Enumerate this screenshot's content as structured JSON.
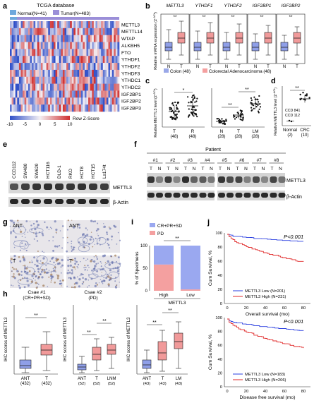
{
  "panel_letters": [
    "a",
    "b",
    "c",
    "d",
    "e",
    "f",
    "g",
    "h",
    "i",
    "j"
  ],
  "panel_a": {
    "title": "TCGA database",
    "legend_normal": "Normal(N=41)",
    "legend_tumor": "Tumor(N=483)",
    "genes": [
      "METTL3",
      "METTL14",
      "WTAP",
      "ALKBH5",
      "FTO",
      "YTHDF1",
      "YTHDF2",
      "YTHDF3",
      "YTHDC1",
      "YTHDC2",
      "IGF2BP1",
      "IGF2BP2",
      "IGF2BP3"
    ],
    "scale_ticks": [
      "-10",
      "-5",
      "0",
      "5",
      "10"
    ],
    "scale_label": "Row Z-Score",
    "colors": {
      "normal": "#6fa8dc",
      "tumor": "#9b8fd8",
      "low": "#3050c8",
      "high": "#d03030"
    }
  },
  "panel_b": {
    "genes": [
      "METTL3",
      "YTHDF1",
      "YTHDF2",
      "IGF2BP1",
      "IGF2BP2"
    ],
    "sig": [
      "**",
      "**",
      "**",
      "**",
      "**"
    ],
    "ylabel": "Relative mRNA expression (2",
    "ylabel_sup": "-ΔCt",
    "ylabel_end": ")",
    "xticks": [
      "N",
      "T"
    ],
    "legend": [
      {
        "label": "Colon (48)",
        "color": "#9aa8e8"
      },
      {
        "label": "Colorectal Adenocarcinoma (48)",
        "color": "#f4a0a0"
      }
    ]
  },
  "panel_c": {
    "ylabel": "Relative METTL3 level (2",
    "ylabel_sup": "-ΔCt",
    "ylabel_end": ")",
    "left": {
      "groups": [
        "T",
        "R"
      ],
      "counts": [
        "(48)",
        "(48)"
      ],
      "sig": "*"
    },
    "right": {
      "groups": [
        "N",
        "T",
        "LM"
      ],
      "counts": [
        "(28)",
        "(28)",
        "(28)"
      ],
      "sig": [
        "**",
        "**"
      ]
    }
  },
  "panel_d": {
    "ylabel": "Relative METTL3 level (2",
    "ylabel_sup": "-ΔCt",
    "ylabel_end": ")",
    "groups": [
      "Normal",
      "CRC"
    ],
    "counts": [
      "(2)",
      "(10)"
    ],
    "sig": "**",
    "annot": [
      "CCD 841",
      "CCD 112"
    ]
  },
  "panel_e": {
    "lanes": [
      "CCD112",
      "SW480",
      "SW620",
      "HCT116",
      "DLD-1",
      "RKO",
      "HCT8",
      "HCT15",
      "Ls174t"
    ],
    "bands": [
      "METTL3",
      "β-Actin"
    ]
  },
  "panel_f": {
    "title": "Patient",
    "patients": [
      "#1",
      "#2",
      "#3",
      "#4",
      "#5",
      "#6",
      "#7",
      "#8"
    ],
    "lane_labels": [
      "T",
      "N"
    ],
    "bands": [
      "METTL3",
      "β-Actin"
    ]
  },
  "panel_g": {
    "labels_top": [
      "ANT",
      "ANT"
    ],
    "labels_bottom": [
      "T",
      "T"
    ],
    "case1": "Csae #1",
    "case1_sub": "(CR+PR+SD)",
    "case2": "Csae #2",
    "case2_sub": "(PD)"
  },
  "panel_h": {
    "ylabel": "IHC scores of METTL3",
    "p1": {
      "groups": [
        "ANT",
        "T"
      ],
      "counts": [
        "(432)",
        "(432)"
      ],
      "sig": "**"
    },
    "p2": {
      "groups": [
        "ANT",
        "T",
        "LNM"
      ],
      "counts": [
        "(52)",
        "(52)",
        "(52)"
      ],
      "sig": [
        "**",
        "**"
      ]
    },
    "p3": {
      "groups": [
        "ANT",
        "T",
        "LM"
      ],
      "counts": [
        "(43)",
        "(43)",
        "(43)"
      ],
      "sig": [
        "**",
        "**"
      ]
    }
  },
  "panel_i": {
    "legend": [
      {
        "label": "CR+PR+SD",
        "color": "#9aa8f0"
      },
      {
        "label": "PD",
        "color": "#f4a0a0"
      }
    ],
    "ylabel": "% of Specimens",
    "yticks": [
      "0",
      "50",
      "100"
    ],
    "groups": [
      "High",
      "Low"
    ],
    "xlabel": "METTL3",
    "sig": "**"
  },
  "panel_j": {
    "top": {
      "p": "P<0.001",
      "ylabel": "Cum Survival, %",
      "xlabel": "Overall survival (mo)",
      "legend": [
        {
          "label": "METTL3 Low (N=201)",
          "color": "#2a3fe0"
        },
        {
          "label": "METTL3 High (N=231)",
          "color": "#e02a2a"
        }
      ],
      "yticks": [
        "0",
        "20",
        "40",
        "60",
        "80",
        "100"
      ],
      "xticks": [
        "0",
        "20",
        "40",
        "60",
        "80"
      ]
    },
    "bottom": {
      "p": "P<0.001",
      "ylabel": "Cum Survival, %",
      "xlabel": "Disease free survival (mo)",
      "legend": [
        {
          "label": "METTL3 Low (N=183)",
          "color": "#2a3fe0"
        },
        {
          "label": "METTL3 High (N=206)",
          "color": "#e02a2a"
        }
      ],
      "yticks": [
        "0",
        "20",
        "40",
        "60",
        "80",
        "100"
      ],
      "xticks": [
        "0",
        "20",
        "40",
        "60",
        "80"
      ]
    }
  }
}
